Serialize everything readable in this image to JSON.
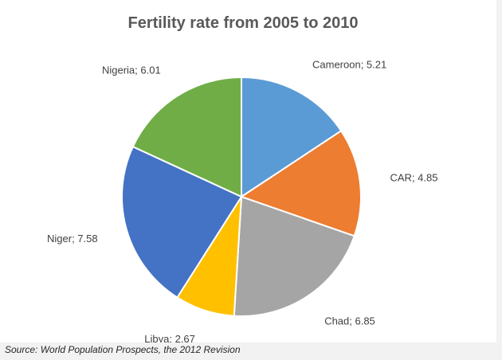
{
  "chart_data": {
    "type": "pie",
    "title": "Fertility rate from 2005 to 2010",
    "categories": [
      "Cameroon",
      "CAR",
      "Chad",
      "Libya",
      "Niger",
      "Nigeria"
    ],
    "values": [
      5.21,
      4.85,
      6.85,
      2.67,
      7.58,
      6.01
    ],
    "data_labels": [
      "Cameroon; 5.21",
      "CAR; 4.85",
      "Chad; 6.85",
      "Libya; 2.67",
      "Niger; 7.58",
      "Nigeria; 6.01"
    ],
    "colors": [
      "#5b9bd5",
      "#ed7d31",
      "#a5a5a5",
      "#ffc000",
      "#4472c4",
      "#70ad47"
    ],
    "start_angle": "12 o'clock",
    "direction": "clockwise",
    "legend": "none"
  },
  "source": "Source: World Population Prospects, the 2012 Revision"
}
